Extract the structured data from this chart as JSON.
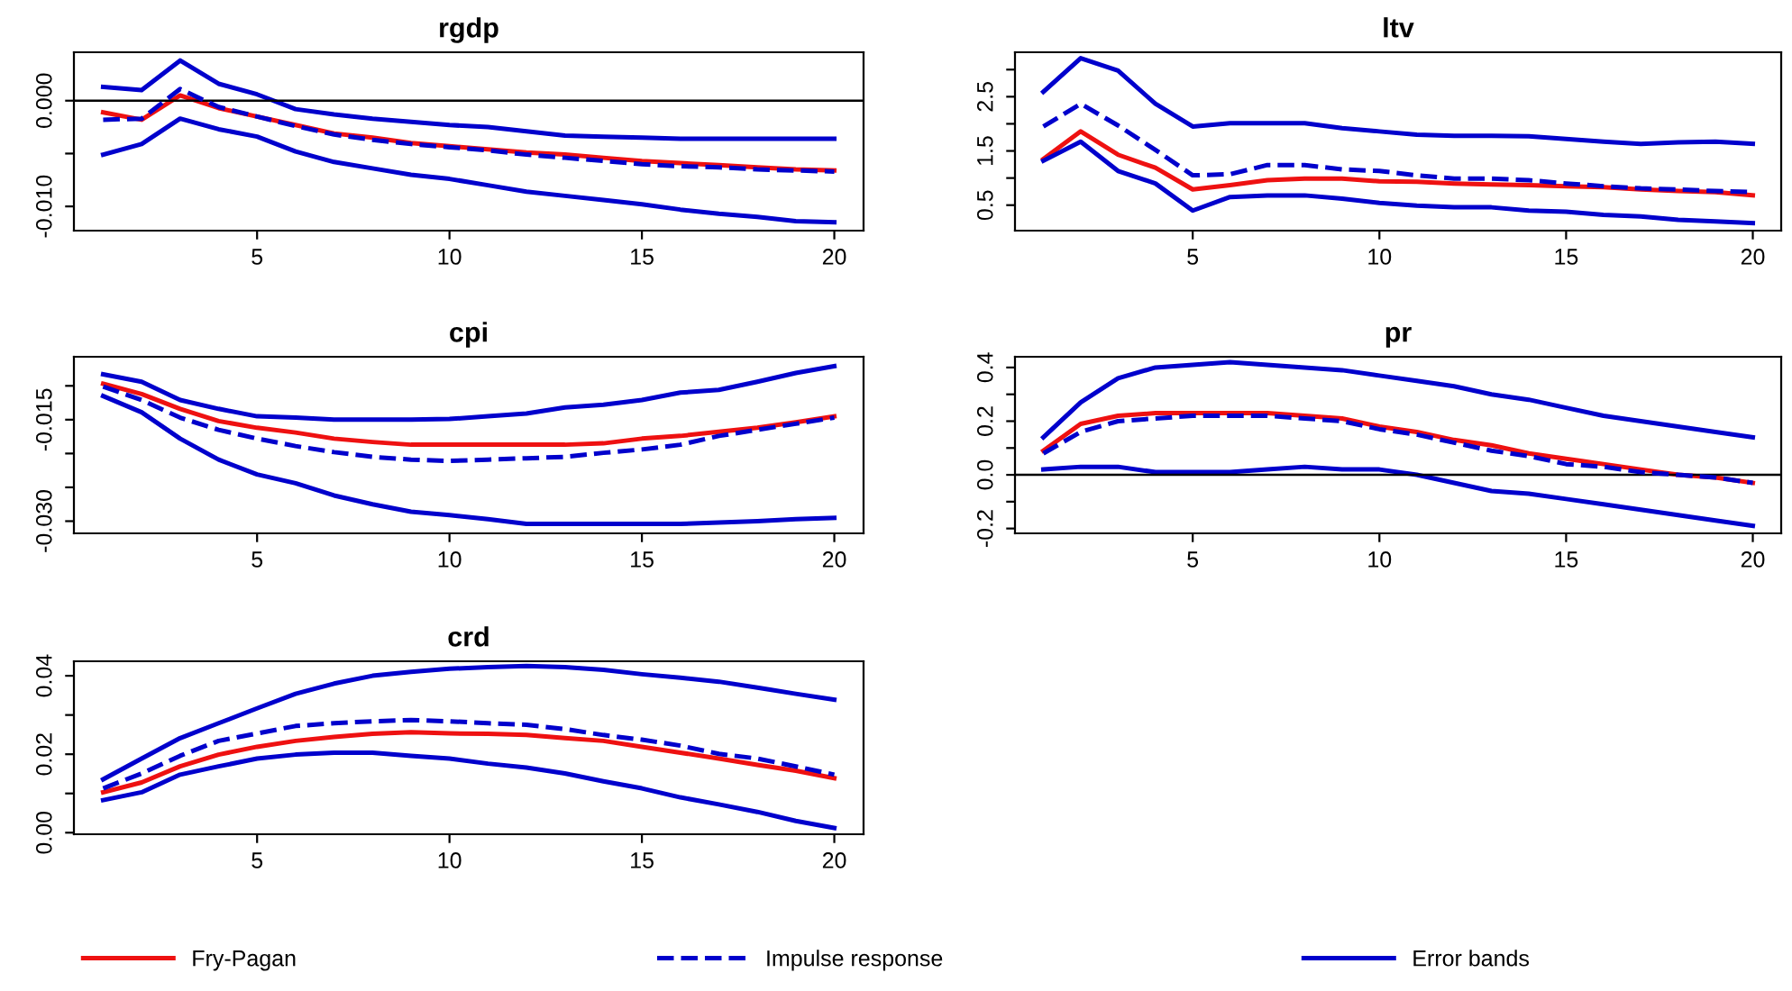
{
  "chart_data": [
    {
      "type": "line",
      "title": "rgdp",
      "x": [
        1,
        2,
        3,
        4,
        5,
        6,
        7,
        8,
        9,
        10,
        11,
        12,
        13,
        14,
        15,
        16,
        17,
        18,
        19,
        20
      ],
      "xlim": [
        0.24,
        20.76
      ],
      "xticks": [
        5,
        10,
        15,
        20
      ],
      "ylim": [
        -0.01229,
        0.00458
      ],
      "yticks": [
        {
          "value": -0.01,
          "label": "-0.010"
        },
        {
          "value": -0.005,
          "label": null
        },
        {
          "value": 0,
          "label": "0.000"
        }
      ],
      "grid": false,
      "ref_lines": [
        {
          "axis": "y",
          "value": 0,
          "color": "#000000"
        }
      ],
      "series": [
        {
          "color": "#0000cc",
          "line_style": "solid",
          "values": [
            0.0013,
            0.001,
            0.0038,
            0.0016,
            0.0006,
            -0.0008,
            -0.0013,
            -0.0017,
            -0.002,
            -0.0023,
            -0.0025,
            -0.0029,
            -0.0033,
            -0.0034,
            -0.0035,
            -0.0036,
            -0.0036,
            -0.0036,
            -0.0036,
            -0.0036
          ]
        },
        {
          "color": "#0000cc",
          "line_style": "dashed",
          "values": [
            -0.0018,
            -0.0017,
            0.0011,
            -0.0006,
            -0.0015,
            -0.0024,
            -0.0032,
            -0.0037,
            -0.0041,
            -0.0044,
            -0.0047,
            -0.0051,
            -0.0054,
            -0.0057,
            -0.006,
            -0.0062,
            -0.0063,
            -0.0065,
            -0.0066,
            -0.0067
          ]
        },
        {
          "color": "#ee1111",
          "line_style": "solid",
          "values": [
            -0.0011,
            -0.0018,
            0.0005,
            -0.0007,
            -0.0015,
            -0.0023,
            -0.0031,
            -0.0035,
            -0.004,
            -0.0043,
            -0.0046,
            -0.0049,
            -0.0051,
            -0.0054,
            -0.0057,
            -0.0059,
            -0.0061,
            -0.0063,
            -0.0065,
            -0.0066
          ]
        },
        {
          "color": "#0000cc",
          "line_style": "solid",
          "values": [
            -0.0051,
            -0.0041,
            -0.0017,
            -0.0027,
            -0.0034,
            -0.0048,
            -0.0058,
            -0.0064,
            -0.007,
            -0.0074,
            -0.008,
            -0.0086,
            -0.009,
            -0.0094,
            -0.0098,
            -0.0103,
            -0.0107,
            -0.011,
            -0.0114,
            -0.0115
          ]
        }
      ]
    },
    {
      "type": "line",
      "title": "ltv",
      "x": [
        1,
        2,
        3,
        4,
        5,
        6,
        7,
        8,
        9,
        10,
        11,
        12,
        13,
        14,
        15,
        16,
        17,
        18,
        19,
        20
      ],
      "xlim": [
        0.24,
        20.76
      ],
      "xticks": [
        5,
        10,
        15,
        20
      ],
      "ylim": [
        0.03,
        3.32
      ],
      "yticks": [
        0.5,
        {
          "value": 1.0,
          "label": null
        },
        1.5,
        {
          "value": 2.0,
          "label": null
        },
        2.5,
        {
          "value": 3.0,
          "label": null
        }
      ],
      "grid": false,
      "series": [
        {
          "color": "#0000cc",
          "line_style": "solid",
          "values": [
            2.59,
            3.21,
            2.98,
            2.37,
            1.95,
            2.01,
            2.01,
            2.01,
            1.92,
            1.86,
            1.8,
            1.78,
            1.78,
            1.77,
            1.72,
            1.67,
            1.63,
            1.66,
            1.67,
            1.63
          ]
        },
        {
          "color": "#0000cc",
          "line_style": "dashed",
          "values": [
            1.95,
            2.37,
            1.97,
            1.52,
            1.05,
            1.07,
            1.24,
            1.24,
            1.16,
            1.13,
            1.05,
            0.99,
            0.99,
            0.96,
            0.9,
            0.85,
            0.81,
            0.79,
            0.76,
            0.74
          ]
        },
        {
          "color": "#ee1111",
          "line_style": "solid",
          "values": [
            1.35,
            1.86,
            1.43,
            1.19,
            0.79,
            0.87,
            0.96,
            0.99,
            0.99,
            0.94,
            0.93,
            0.9,
            0.88,
            0.87,
            0.85,
            0.83,
            0.79,
            0.76,
            0.74,
            0.68
          ]
        },
        {
          "color": "#0000cc",
          "line_style": "solid",
          "values": [
            1.32,
            1.67,
            1.13,
            0.9,
            0.4,
            0.65,
            0.68,
            0.68,
            0.62,
            0.54,
            0.49,
            0.46,
            0.46,
            0.4,
            0.38,
            0.32,
            0.29,
            0.23,
            0.2,
            0.17
          ]
        }
      ]
    },
    {
      "type": "line",
      "title": "cpi",
      "x": [
        1,
        2,
        3,
        4,
        5,
        6,
        7,
        8,
        9,
        10,
        11,
        12,
        13,
        14,
        15,
        16,
        17,
        18,
        19,
        20
      ],
      "xlim": [
        0.24,
        20.76
      ],
      "xticks": [
        5,
        10,
        15,
        20
      ],
      "ylim": [
        -0.0318,
        -0.0057
      ],
      "yticks": [
        {
          "value": -0.03,
          "label": "-0.030"
        },
        {
          "value": -0.025,
          "label": null
        },
        {
          "value": -0.02,
          "label": null
        },
        -0.015,
        {
          "value": -0.01,
          "label": null
        }
      ],
      "grid": false,
      "series": [
        {
          "color": "#0000cc",
          "line_style": "solid",
          "values": [
            -0.0083,
            -0.0094,
            -0.0121,
            -0.0134,
            -0.0145,
            -0.0147,
            -0.015,
            -0.015,
            -0.015,
            -0.0149,
            -0.0145,
            -0.0141,
            -0.0132,
            -0.0128,
            -0.0121,
            -0.011,
            -0.0106,
            -0.0094,
            -0.0081,
            -0.0071
          ]
        },
        {
          "color": "#0000cc",
          "line_style": "dashed",
          "values": [
            -0.0101,
            -0.0121,
            -0.0147,
            -0.0165,
            -0.0178,
            -0.0189,
            -0.0198,
            -0.0205,
            -0.0209,
            -0.0211,
            -0.0209,
            -0.0207,
            -0.0205,
            -0.0199,
            -0.0194,
            -0.0187,
            -0.0174,
            -0.0165,
            -0.0156,
            -0.0147
          ]
        },
        {
          "color": "#ee1111",
          "line_style": "solid",
          "values": [
            -0.0097,
            -0.0112,
            -0.0134,
            -0.0152,
            -0.0162,
            -0.0169,
            -0.0178,
            -0.0183,
            -0.0187,
            -0.0187,
            -0.0187,
            -0.0187,
            -0.0187,
            -0.0185,
            -0.0178,
            -0.0174,
            -0.0168,
            -0.0162,
            -0.0154,
            -0.0145
          ]
        },
        {
          "color": "#0000cc",
          "line_style": "solid",
          "values": [
            -0.0115,
            -0.0139,
            -0.0178,
            -0.0209,
            -0.0231,
            -0.0244,
            -0.0262,
            -0.0275,
            -0.0286,
            -0.0291,
            -0.0297,
            -0.0304,
            -0.0304,
            -0.0304,
            -0.0304,
            -0.0304,
            -0.0302,
            -0.03,
            -0.0297,
            -0.0295
          ]
        }
      ]
    },
    {
      "type": "line",
      "title": "pr",
      "x": [
        1,
        2,
        3,
        4,
        5,
        6,
        7,
        8,
        9,
        10,
        11,
        12,
        13,
        14,
        15,
        16,
        17,
        18,
        19,
        20
      ],
      "xlim": [
        0.24,
        20.76
      ],
      "xticks": [
        5,
        10,
        15,
        20
      ],
      "ylim": [
        -0.218,
        0.44
      ],
      "yticks": [
        -0.2,
        {
          "value": -0.1,
          "label": null
        },
        {
          "value": 0,
          "label": "0.0"
        },
        {
          "value": 0.1,
          "label": null
        },
        0.2,
        {
          "value": 0.3,
          "label": null
        },
        0.4
      ],
      "grid": false,
      "ref_lines": [
        {
          "axis": "y",
          "value": 0,
          "color": "#000000"
        }
      ],
      "series": [
        {
          "color": "#0000cc",
          "line_style": "solid",
          "values": [
            0.14,
            0.27,
            0.36,
            0.4,
            0.41,
            0.42,
            0.41,
            0.4,
            0.39,
            0.37,
            0.35,
            0.33,
            0.3,
            0.28,
            0.25,
            0.22,
            0.2,
            0.18,
            0.16,
            0.14
          ]
        },
        {
          "color": "#0000cc",
          "line_style": "dashed",
          "values": [
            0.08,
            0.16,
            0.2,
            0.21,
            0.22,
            0.22,
            0.22,
            0.21,
            0.2,
            0.17,
            0.15,
            0.12,
            0.09,
            0.07,
            0.04,
            0.03,
            0.01,
            0.0,
            -0.01,
            -0.03
          ]
        },
        {
          "color": "#ee1111",
          "line_style": "solid",
          "values": [
            0.09,
            0.19,
            0.22,
            0.23,
            0.23,
            0.23,
            0.23,
            0.22,
            0.21,
            0.18,
            0.16,
            0.13,
            0.11,
            0.08,
            0.06,
            0.04,
            0.02,
            0.0,
            -0.01,
            -0.03
          ]
        },
        {
          "color": "#0000cc",
          "line_style": "solid",
          "values": [
            0.02,
            0.03,
            0.03,
            0.01,
            0.01,
            0.01,
            0.02,
            0.03,
            0.02,
            0.02,
            0.0,
            -0.03,
            -0.06,
            -0.07,
            -0.09,
            -0.11,
            -0.13,
            -0.15,
            -0.17,
            -0.19
          ]
        }
      ]
    },
    {
      "type": "line",
      "title": "crd",
      "x": [
        1,
        2,
        3,
        4,
        5,
        6,
        7,
        8,
        9,
        10,
        11,
        12,
        13,
        14,
        15,
        16,
        17,
        18,
        19,
        20
      ],
      "xlim": [
        0.24,
        20.76
      ],
      "xticks": [
        5,
        10,
        15,
        20
      ],
      "ylim": [
        -0.0004,
        0.0437
      ],
      "yticks": [
        {
          "value": 0,
          "label": "0.00"
        },
        {
          "value": 0.01,
          "label": null
        },
        0.02,
        {
          "value": 0.03,
          "label": null
        },
        0.04
      ],
      "grid": false,
      "legend": "bottom",
      "series": [
        {
          "name": "Fry-Pagan",
          "color": "#ee1111",
          "line_style": "solid",
          "values": [
            0.0103,
            0.0128,
            0.0169,
            0.0199,
            0.0219,
            0.0234,
            0.0244,
            0.0252,
            0.0256,
            0.0253,
            0.0252,
            0.0249,
            0.0241,
            0.0234,
            0.0219,
            0.0204,
            0.0189,
            0.0173,
            0.0158,
            0.0139
          ]
        },
        {
          "name": "Impulse response",
          "color": "#0000cc",
          "line_style": "dashed",
          "values": [
            0.0113,
            0.0151,
            0.0196,
            0.0234,
            0.0253,
            0.0272,
            0.0279,
            0.0284,
            0.0287,
            0.0284,
            0.0279,
            0.0275,
            0.0264,
            0.0249,
            0.0237,
            0.0222,
            0.0201,
            0.0189,
            0.0169,
            0.0148
          ]
        },
        {
          "name": "Error bands",
          "color": "#0000cc",
          "line_style": "solid",
          "values": [
            0.0136,
            0.0189,
            0.0241,
            0.0279,
            0.0317,
            0.0354,
            0.038,
            0.04,
            0.041,
            0.0418,
            0.0422,
            0.0425,
            0.0422,
            0.0415,
            0.0404,
            0.0395,
            0.0385,
            0.037,
            0.0354,
            0.0339
          ]
        },
        {
          "color": "#0000cc",
          "line_style": "solid",
          "values": [
            0.0083,
            0.0103,
            0.0148,
            0.0169,
            0.0189,
            0.0199,
            0.0204,
            0.0204,
            0.0196,
            0.0189,
            0.0176,
            0.0166,
            0.0151,
            0.0131,
            0.0113,
            0.009,
            0.0072,
            0.0053,
            0.003,
            0.0012
          ]
        }
      ]
    }
  ]
}
